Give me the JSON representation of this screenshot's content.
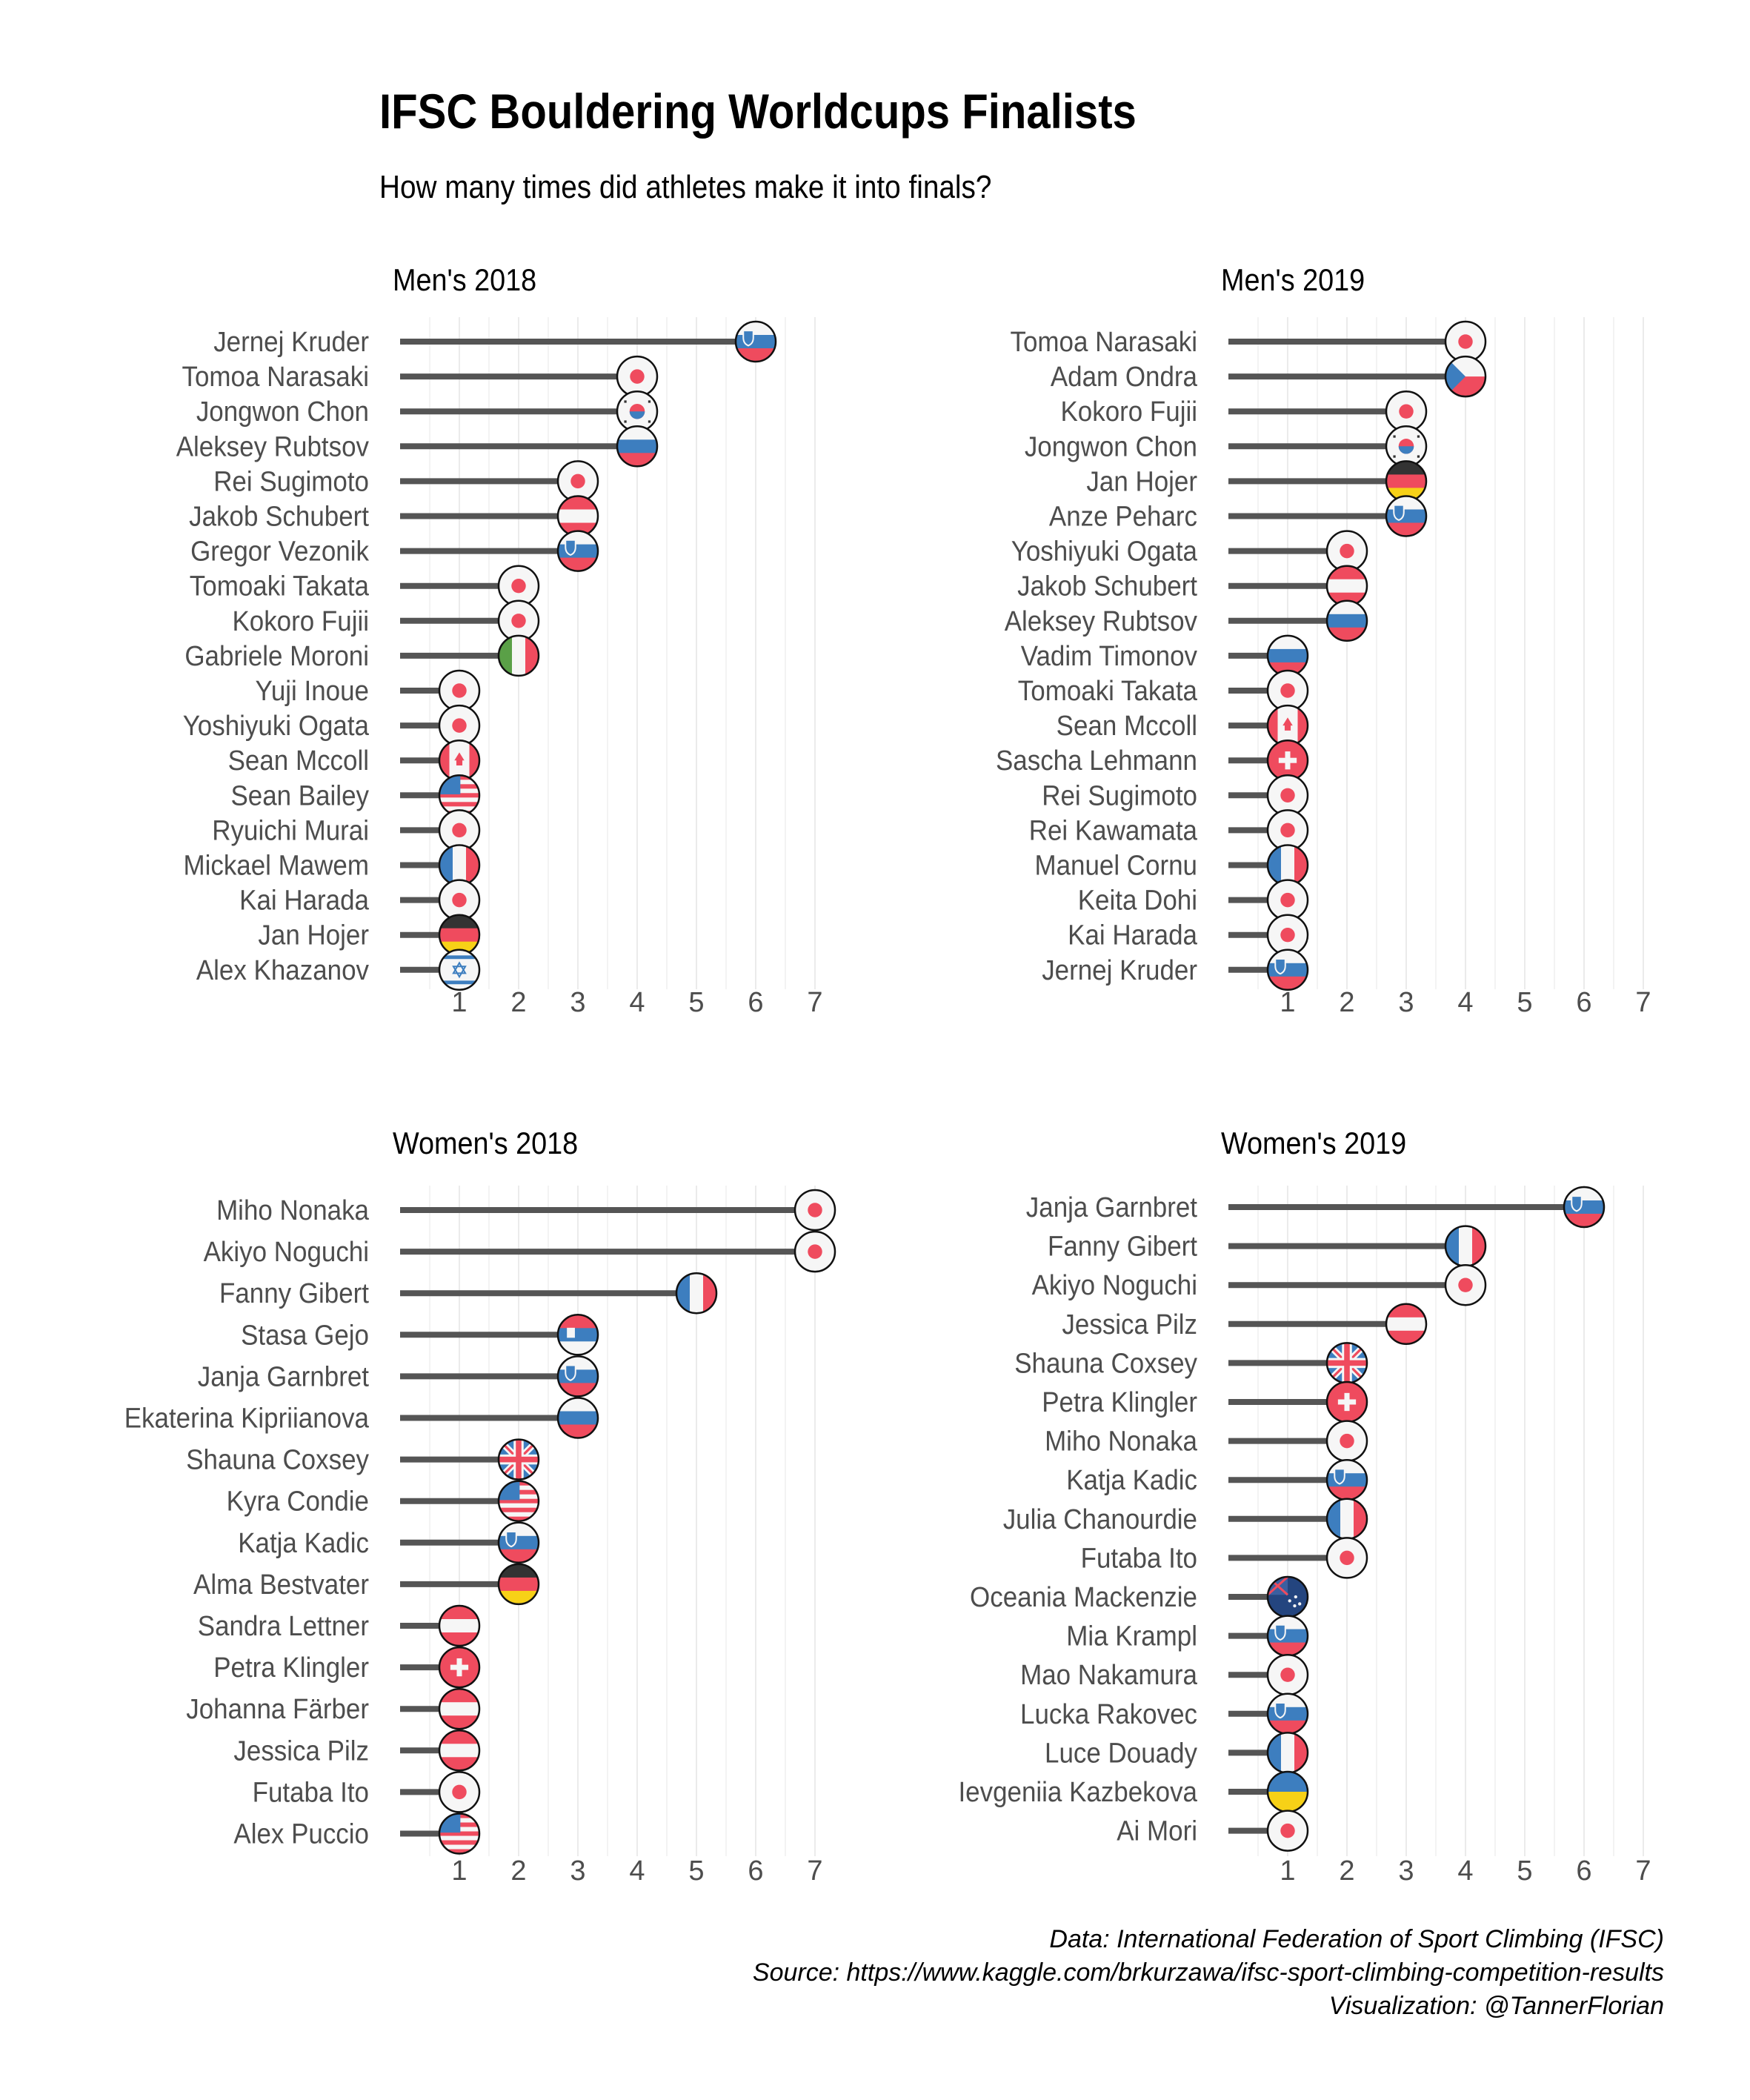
{
  "title": "IFSC Bouldering Worldcups Finalists",
  "subtitle": "How many times did athletes make it into finals?",
  "caption": [
    "Data:  International Federation of Sport Climbing (IFSC)",
    "Source: https://www.kaggle.com/brkurzawa/ifsc-sport-climbing-competition-results",
    "Visualization: @TannerFlorian"
  ],
  "chart_data": [
    {
      "type": "bar",
      "title": "Men's 2018",
      "xlim": [
        0,
        7
      ],
      "xticks": [
        1,
        2,
        3,
        4,
        5,
        6,
        7
      ],
      "categories": [
        "Jernej Kruder",
        "Tomoa Narasaki",
        "Jongwon Chon",
        "Aleksey Rubtsov",
        "Rei Sugimoto",
        "Jakob Schubert",
        "Gregor Vezonik",
        "Tomoaki Takata",
        "Kokoro Fujii",
        "Gabriele Moroni",
        "Yuji Inoue",
        "Yoshiyuki Ogata",
        "Sean Mccoll",
        "Sean Bailey",
        "Ryuichi Murai",
        "Mickael Mawem",
        "Kai Harada",
        "Jan Hojer",
        "Alex Khazanov"
      ],
      "values": [
        6,
        4,
        4,
        4,
        3,
        3,
        3,
        2,
        2,
        2,
        1,
        1,
        1,
        1,
        1,
        1,
        1,
        1,
        1
      ],
      "flags": [
        "slovenia",
        "japan",
        "korea",
        "russia",
        "japan",
        "austria",
        "slovenia",
        "japan",
        "japan",
        "italy",
        "japan",
        "japan",
        "canada",
        "usa",
        "japan",
        "france",
        "japan",
        "germany",
        "israel"
      ]
    },
    {
      "type": "bar",
      "title": "Men's 2019",
      "xlim": [
        0,
        7
      ],
      "xticks": [
        1,
        2,
        3,
        4,
        5,
        6,
        7
      ],
      "categories": [
        "Tomoa Narasaki",
        "Adam Ondra",
        "Kokoro Fujii",
        "Jongwon Chon",
        "Jan Hojer",
        "Anze Peharc",
        "Yoshiyuki Ogata",
        "Jakob Schubert",
        "Aleksey Rubtsov",
        "Vadim Timonov",
        "Tomoaki Takata",
        "Sean Mccoll",
        "Sascha Lehmann",
        "Rei Sugimoto",
        "Rei Kawamata",
        "Manuel Cornu",
        "Keita Dohi",
        "Kai Harada",
        "Jernej Kruder"
      ],
      "values": [
        4,
        4,
        3,
        3,
        3,
        3,
        2,
        2,
        2,
        1,
        1,
        1,
        1,
        1,
        1,
        1,
        1,
        1,
        1
      ],
      "flags": [
        "japan",
        "czech",
        "japan",
        "korea",
        "germany",
        "slovenia",
        "japan",
        "austria",
        "russia",
        "russia",
        "japan",
        "canada",
        "switzerland",
        "japan",
        "japan",
        "france",
        "japan",
        "japan",
        "slovenia"
      ]
    },
    {
      "type": "bar",
      "title": "Women's 2018",
      "xlim": [
        0,
        7
      ],
      "xticks": [
        1,
        2,
        3,
        4,
        5,
        6,
        7
      ],
      "categories": [
        "Miho Nonaka",
        "Akiyo Noguchi",
        "Fanny Gibert",
        "Stasa Gejo",
        "Janja Garnbret",
        "Ekaterina Kipriianova",
        "Shauna Coxsey",
        "Kyra Condie",
        "Katja Kadic",
        "Alma Bestvater",
        "Sandra Lettner",
        "Petra Klingler",
        "Johanna Färber",
        "Jessica Pilz",
        "Futaba Ito",
        "Alex Puccio"
      ],
      "values": [
        7,
        7,
        5,
        3,
        3,
        3,
        2,
        2,
        2,
        2,
        1,
        1,
        1,
        1,
        1,
        1
      ],
      "flags": [
        "japan",
        "japan",
        "france",
        "serbia",
        "slovenia",
        "russia",
        "uk",
        "usa",
        "slovenia",
        "germany",
        "austria",
        "switzerland",
        "austria",
        "austria",
        "japan",
        "usa"
      ]
    },
    {
      "type": "bar",
      "title": "Women's 2019",
      "xlim": [
        0,
        7
      ],
      "xticks": [
        1,
        2,
        3,
        4,
        5,
        6,
        7
      ],
      "categories": [
        "Janja Garnbret",
        "Fanny Gibert",
        "Akiyo Noguchi",
        "Jessica Pilz",
        "Shauna Coxsey",
        "Petra Klingler",
        "Miho Nonaka",
        "Katja Kadic",
        "Julia Chanourdie",
        "Futaba Ito",
        "Oceania Mackenzie",
        "Mia Krampl",
        "Mao Nakamura",
        "Lucka Rakovec",
        "Luce Douady",
        "Ievgeniia Kazbekova",
        "Ai Mori"
      ],
      "values": [
        6,
        4,
        4,
        3,
        2,
        2,
        2,
        2,
        2,
        2,
        1,
        1,
        1,
        1,
        1,
        1,
        1
      ],
      "flags": [
        "slovenia",
        "france",
        "japan",
        "austria",
        "uk",
        "switzerland",
        "japan",
        "slovenia",
        "france",
        "japan",
        "australia",
        "slovenia",
        "japan",
        "slovenia",
        "france",
        "ukraine",
        "japan"
      ]
    }
  ]
}
